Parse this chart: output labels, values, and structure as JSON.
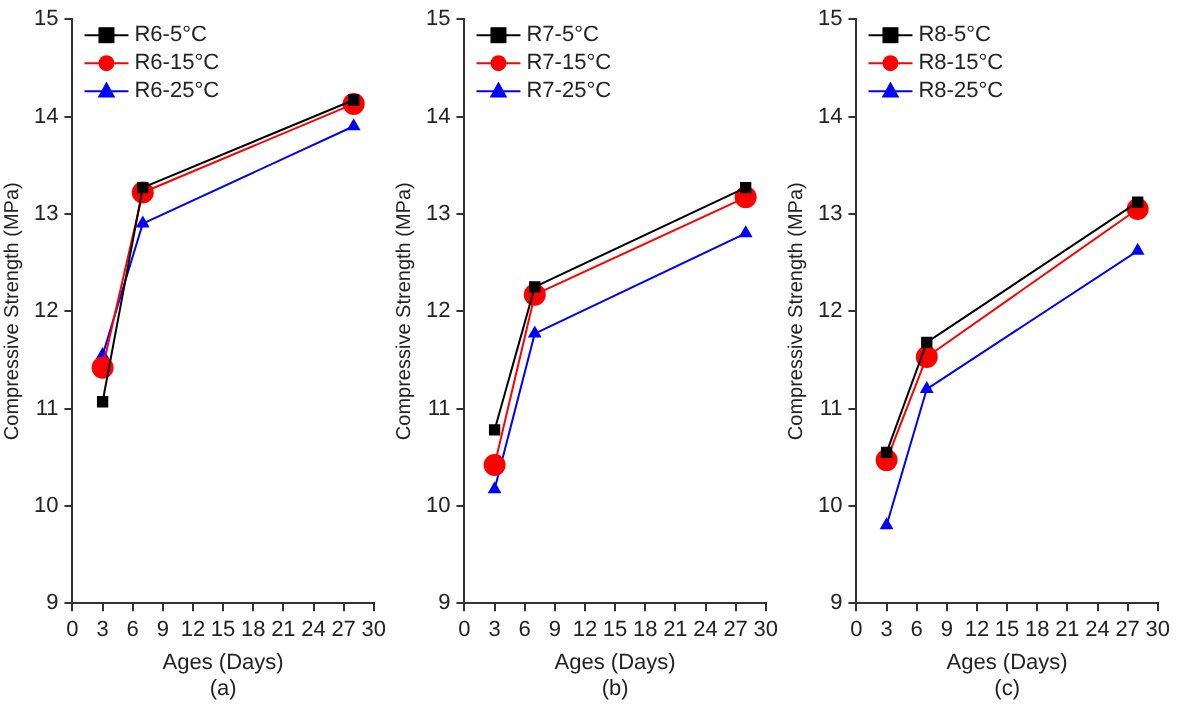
{
  "chart_data": [
    {
      "type": "line",
      "xlabel": "Ages (Days)",
      "ylabel": "Compressive Strength (MPa)",
      "annotations": [
        "(a)"
      ],
      "x": [
        3,
        7,
        28
      ],
      "xlim": [
        0,
        30
      ],
      "xticks": [
        0,
        3,
        6,
        9,
        12,
        15,
        18,
        21,
        24,
        27,
        30
      ],
      "ylim": [
        9,
        15
      ],
      "yticks": [
        9,
        10,
        11,
        12,
        13,
        14,
        15
      ],
      "grid": false,
      "legend": "top left",
      "line_style": "solid",
      "series": [
        {
          "name": "R6-5°C",
          "color": "#000000",
          "marker": "square",
          "values": [
            11.07,
            13.27,
            14.17
          ]
        },
        {
          "name": "R6-15°C",
          "color": "#ff0000",
          "marker": "circle",
          "values": [
            11.42,
            13.22,
            14.13
          ]
        },
        {
          "name": "R6-25°C",
          "color": "#0000ff",
          "marker": "triangle",
          "values": [
            11.55,
            12.9,
            13.9
          ]
        }
      ]
    },
    {
      "type": "line",
      "xlabel": "Ages (Days)",
      "ylabel": "Compressive Strength (MPa)",
      "annotations": [
        "(b)"
      ],
      "x": [
        3,
        7,
        28
      ],
      "xlim": [
        0,
        30
      ],
      "xticks": [
        0,
        3,
        6,
        9,
        12,
        15,
        18,
        21,
        24,
        27,
        30
      ],
      "ylim": [
        9,
        15
      ],
      "yticks": [
        9,
        10,
        11,
        12,
        13,
        14,
        15
      ],
      "grid": false,
      "legend": "top left",
      "line_style": "solid",
      "series": [
        {
          "name": "R7-5°C",
          "color": "#000000",
          "marker": "square",
          "values": [
            10.78,
            12.25,
            13.27
          ]
        },
        {
          "name": "R7-15°C",
          "color": "#ff0000",
          "marker": "circle",
          "values": [
            10.42,
            12.17,
            13.17
          ]
        },
        {
          "name": "R7-25°C",
          "color": "#0000ff",
          "marker": "triangle",
          "values": [
            10.17,
            11.77,
            12.8
          ]
        }
      ]
    },
    {
      "type": "line",
      "xlabel": "Ages (Days)",
      "ylabel": "Compressive Strength (MPa)",
      "annotations": [
        "(c)"
      ],
      "x": [
        3,
        7,
        28
      ],
      "xlim": [
        0,
        30
      ],
      "xticks": [
        0,
        3,
        6,
        9,
        12,
        15,
        18,
        21,
        24,
        27,
        30
      ],
      "ylim": [
        9,
        15
      ],
      "yticks": [
        9,
        10,
        11,
        12,
        13,
        14,
        15
      ],
      "grid": false,
      "legend": "top left",
      "line_style": "solid",
      "series": [
        {
          "name": "R8-5°C",
          "color": "#000000",
          "marker": "square",
          "values": [
            10.55,
            11.68,
            13.12
          ]
        },
        {
          "name": "R8-15°C",
          "color": "#ff0000",
          "marker": "circle",
          "values": [
            10.47,
            11.53,
            13.05
          ]
        },
        {
          "name": "R8-25°C",
          "color": "#0000ff",
          "marker": "triangle",
          "values": [
            9.8,
            11.2,
            12.62
          ]
        }
      ]
    }
  ]
}
